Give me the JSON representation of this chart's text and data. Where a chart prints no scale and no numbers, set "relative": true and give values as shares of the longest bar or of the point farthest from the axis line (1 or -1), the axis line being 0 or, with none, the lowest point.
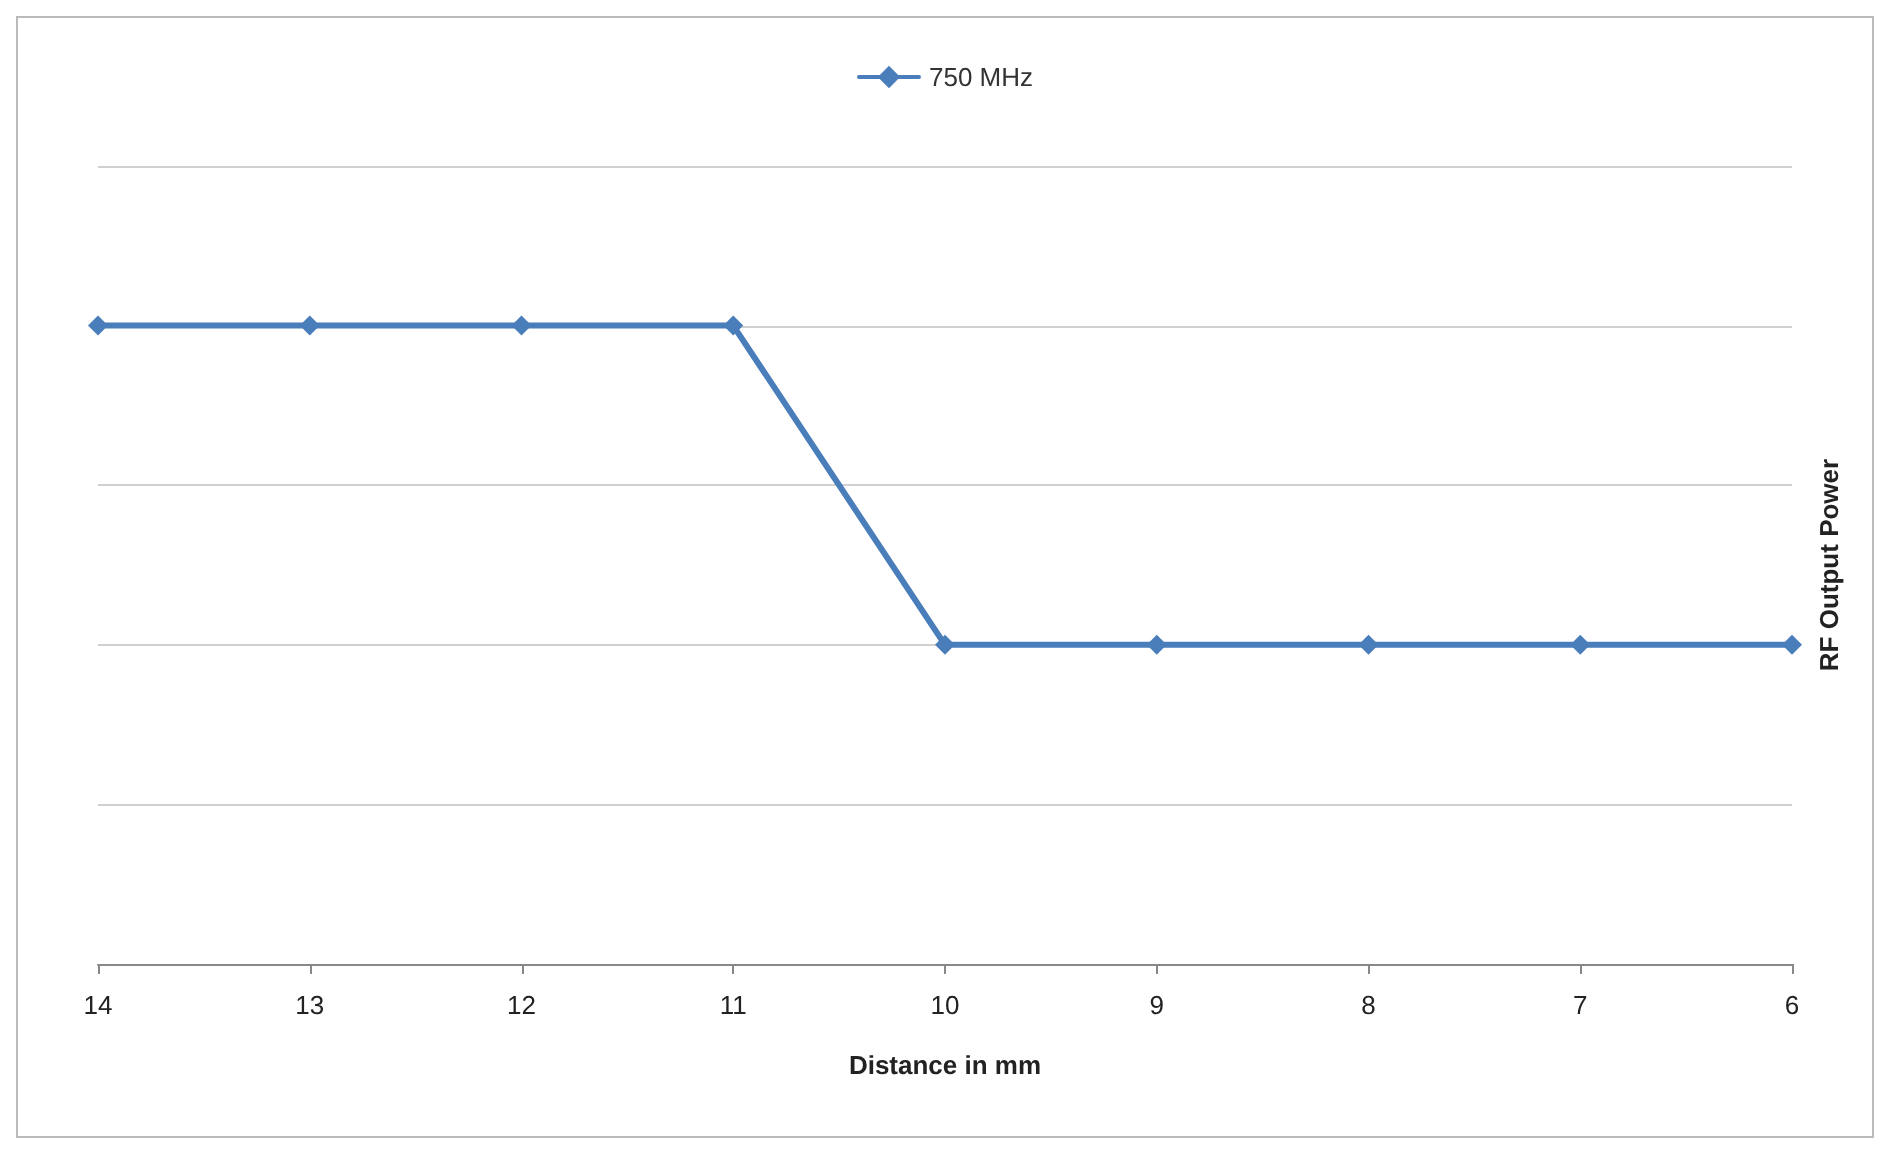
{
  "chart_data": {
    "type": "line",
    "xlabel": "Distance in mm",
    "ylabel": "RF Output Power",
    "categories": [
      "14",
      "13",
      "12",
      "11",
      "10",
      "9",
      "8",
      "7",
      "6"
    ],
    "series": [
      {
        "name": "750 MHz",
        "color": "#4a7ebb",
        "values": [
          1,
          1,
          1,
          1,
          0.5,
          0.5,
          0.5,
          0.5,
          0.5
        ]
      }
    ],
    "relative": true,
    "grid": "y",
    "legend": "top",
    "marker": "diamond",
    "line_style": "solid"
  }
}
